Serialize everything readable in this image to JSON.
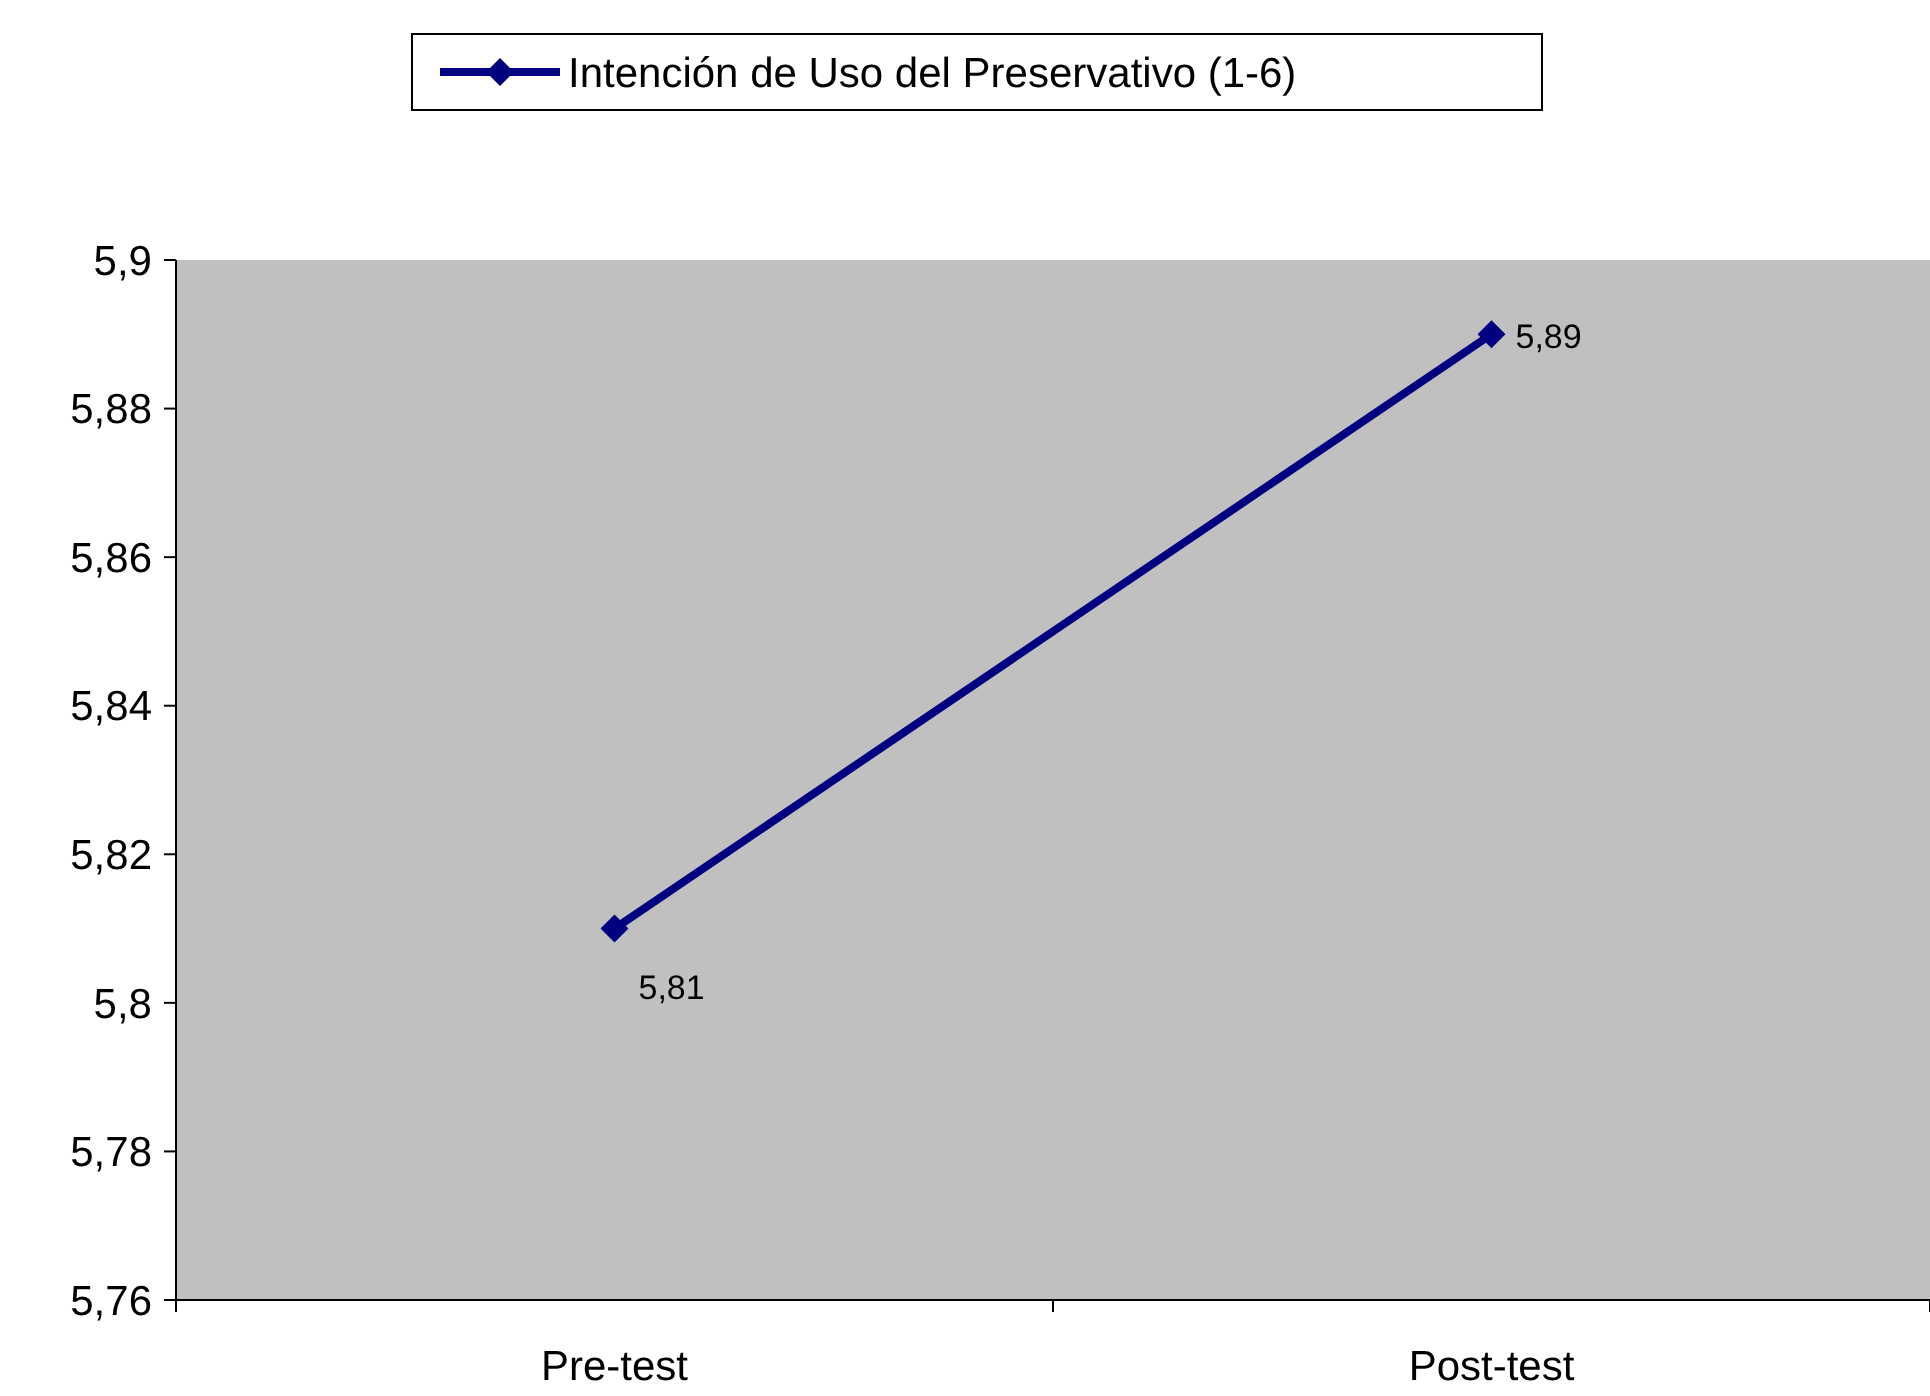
{
  "chart_data": {
    "type": "line",
    "categories": [
      "Pre-test",
      "Post-test"
    ],
    "series": [
      {
        "name": "Intención de Uso del Preservativo (1-6)",
        "color": "#000080",
        "values": [
          5.81,
          5.89
        ],
        "value_labels": [
          "5,81",
          "5,89"
        ]
      }
    ],
    "ylim": [
      5.76,
      5.9
    ],
    "yticks": [
      {
        "value": 5.76,
        "label": "5,76"
      },
      {
        "value": 5.78,
        "label": "5,78"
      },
      {
        "value": 5.8,
        "label": "5,8"
      },
      {
        "value": 5.82,
        "label": "5,82"
      },
      {
        "value": 5.84,
        "label": "5,84"
      },
      {
        "value": 5.86,
        "label": "5,86"
      },
      {
        "value": 5.88,
        "label": "5,88"
      },
      {
        "value": 5.9,
        "label": "5,9"
      }
    ],
    "grid": false,
    "legend": "top",
    "marker": "diamond",
    "line_style": "solid"
  }
}
